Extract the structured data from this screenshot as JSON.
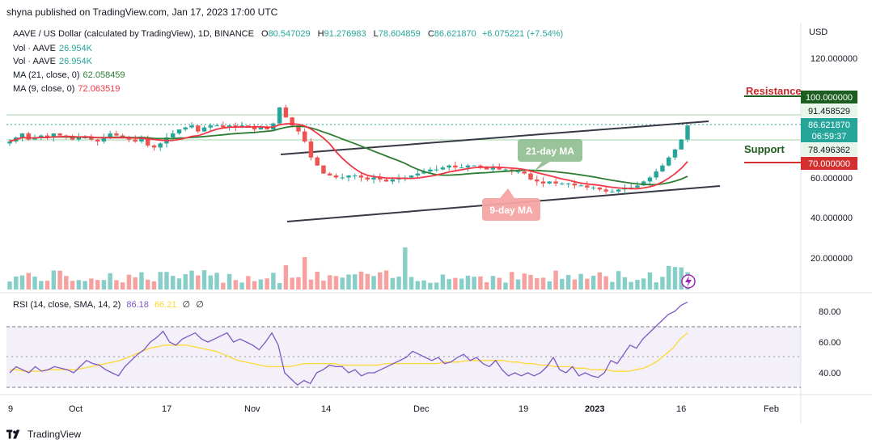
{
  "header": {
    "published": "shyna published on TradingView.com, Jan 17, 2023 17:00 UTC"
  },
  "legend": {
    "symbol": "AAVE / US Dollar (calculated by TradingView), 1D, BINANCE",
    "ohlc": [
      {
        "k": "O",
        "v": "80.547029"
      },
      {
        "k": "H",
        "v": "91.276983"
      },
      {
        "k": "L",
        "v": "78.604859"
      },
      {
        "k": "C",
        "v": "86.621870"
      }
    ],
    "change": "+6.075221 (+7.54%)",
    "vol1_label": "Vol · AAVE",
    "vol1_value": "26.954K",
    "vol2_label": "Vol · AAVE",
    "vol2_value": "26.954K",
    "ma21_label": "MA (21, close, 0)",
    "ma21_value": "62.058459",
    "ma9_label": "MA (9, close, 0)",
    "ma9_value": "72.063519",
    "rsi_label": "RSI (14, close, SMA, 14, 2)",
    "rsi_value": "86.18",
    "rsi_sma_value": "66.21",
    "rsi_extra1": "∅",
    "rsi_extra2": "∅"
  },
  "axis": {
    "currency": "USD",
    "price_ticks": [
      "120.000000",
      "60.000000",
      "40.000000",
      "20.000000"
    ],
    "rsi_ticks": [
      "80.00",
      "60.00",
      "40.00"
    ],
    "x_ticks": [
      "9",
      "Oct",
      "17",
      "Nov",
      "14",
      "Dec",
      "19",
      "2023",
      "16",
      "Feb"
    ]
  },
  "price_tags": {
    "resistance": "100.000000",
    "high": "91.458529",
    "current": "86.621870",
    "countdown": "06:59:37",
    "low": "78.496362",
    "support": "70.000000"
  },
  "annotations": {
    "resistance": "Resistance",
    "support": "Support",
    "ma21": "21-day MA",
    "ma9": "9-day MA"
  },
  "colors": {
    "up": "#26a69a",
    "down": "#ef5350",
    "ma21": "#2e7d32",
    "ma9": "#f23645",
    "rsi": "#7e57c2",
    "rsi_sma": "#fdd835",
    "resistance": "#1b5e20",
    "support": "#d32f2f",
    "current": "#26a69a"
  },
  "footer": {
    "brand": "TradingView"
  },
  "chart_data": {
    "type": "candlestick",
    "title": "AAVE / US Dollar (calculated by TradingView), 1D, BINANCE",
    "ylabel": "USD",
    "ylim": [
      30,
      130
    ],
    "x_range": [
      "2022-09-09",
      "2023-02-08"
    ],
    "close_approx": [
      78,
      80,
      82,
      79,
      80,
      81,
      80,
      82,
      81,
      80,
      79,
      80,
      80,
      79,
      78,
      80,
      82,
      81,
      80,
      79,
      78,
      80,
      76,
      75,
      77,
      80,
      82,
      84,
      85,
      86,
      83,
      85,
      86,
      86,
      85,
      86,
      85,
      86,
      85,
      84,
      85,
      84,
      87,
      95,
      90,
      86,
      83,
      78,
      70,
      66,
      62,
      61,
      60,
      60,
      61,
      61,
      60,
      59,
      60,
      59,
      58,
      59,
      60,
      60,
      61,
      62,
      63,
      64,
      64,
      65,
      66,
      65,
      65,
      66,
      66,
      65,
      64,
      65,
      64,
      64,
      63,
      63,
      62,
      59,
      58,
      57,
      58,
      57,
      57,
      57,
      56,
      56,
      55,
      55,
      54,
      53,
      53,
      54,
      55,
      55,
      56,
      58,
      60,
      63,
      66,
      70,
      74,
      79,
      86
    ],
    "volume_relative_max": 36,
    "ma21_last": 62.058459,
    "ma9_last": 72.063519,
    "support": 70.0,
    "resistance": 100.0,
    "rsi": {
      "period": 14,
      "last": 86.18,
      "sma_last": 66.21,
      "band": [
        30,
        70
      ],
      "ylim": [
        20,
        90
      ],
      "series": [
        40,
        44,
        42,
        40,
        44,
        41,
        42,
        44,
        43,
        42,
        40,
        44,
        48,
        46,
        45,
        42,
        40,
        38,
        44,
        48,
        52,
        55,
        60,
        63,
        67,
        60,
        58,
        62,
        64,
        66,
        62,
        60,
        62,
        64,
        66,
        60,
        62,
        60,
        58,
        55,
        60,
        66,
        58,
        40,
        36,
        32,
        35,
        33,
        40,
        42,
        45,
        44,
        44,
        40,
        42,
        38,
        40,
        40,
        42,
        44,
        46,
        48,
        50,
        54,
        52,
        50,
        48,
        50,
        46,
        47,
        50,
        52,
        48,
        50,
        46,
        44,
        48,
        42,
        38,
        40,
        38,
        40,
        38,
        40,
        44,
        50,
        42,
        40,
        44,
        38,
        40,
        38,
        37,
        40,
        48,
        46,
        52,
        58,
        56,
        62,
        66,
        70,
        74,
        78,
        80,
        84,
        86
      ],
      "sma_series": [
        42,
        42,
        41,
        41,
        41,
        42,
        42,
        42,
        42,
        42,
        43,
        44,
        45,
        46,
        47,
        48,
        50,
        52,
        54,
        56,
        57,
        58,
        58,
        58,
        58,
        57,
        56,
        55,
        54,
        52,
        50,
        48,
        47,
        46,
        45,
        44,
        44,
        44,
        44,
        45,
        46,
        46,
        46,
        46,
        46,
        45,
        45,
        45,
        45,
        45,
        45,
        46,
        46,
        46,
        46,
        46,
        46,
        46,
        46,
        47,
        47,
        47,
        48,
        48,
        48,
        48,
        48,
        48,
        47,
        47,
        46,
        46,
        45,
        45,
        44,
        44,
        44,
        43,
        43,
        42,
        42,
        42,
        41,
        41,
        41,
        42,
        43,
        45,
        48,
        52,
        56,
        62,
        66
      ]
    }
  }
}
